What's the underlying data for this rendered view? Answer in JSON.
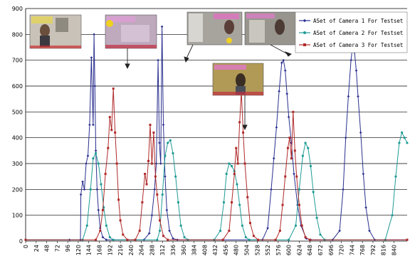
{
  "chart_data": {
    "type": "line",
    "title": "",
    "xlabel": "",
    "ylabel": "",
    "ylim": [
      0,
      900
    ],
    "xlim": [
      0,
      870
    ],
    "grid": true,
    "legend_position": "top-right",
    "yticks": [
      0,
      100,
      200,
      300,
      400,
      500,
      600,
      700,
      800,
      900
    ],
    "xticks": [
      0,
      24,
      48,
      72,
      96,
      120,
      144,
      168,
      192,
      216,
      240,
      264,
      288,
      312,
      336,
      360,
      384,
      408,
      432,
      456,
      480,
      504,
      528,
      552,
      576,
      600,
      624,
      648,
      672,
      696,
      720,
      744,
      768,
      792,
      816,
      840
    ],
    "series": [
      {
        "name": "ASet of Camera 1 For Testset",
        "color": "#2a2f8f",
        "marker": "diamond",
        "points": [
          [
            0,
            5
          ],
          [
            100,
            5
          ],
          [
            125,
            5
          ],
          [
            126,
            180
          ],
          [
            130,
            230
          ],
          [
            134,
            200
          ],
          [
            138,
            300
          ],
          [
            142,
            330
          ],
          [
            146,
            450
          ],
          [
            150,
            710
          ],
          [
            154,
            450
          ],
          [
            156,
            800
          ],
          [
            158,
            600
          ],
          [
            160,
            350
          ],
          [
            163,
            200
          ],
          [
            166,
            120
          ],
          [
            170,
            50
          ],
          [
            176,
            15
          ],
          [
            184,
            5
          ],
          [
            270,
            5
          ],
          [
            282,
            30
          ],
          [
            288,
            100
          ],
          [
            294,
            200
          ],
          [
            298,
            300
          ],
          [
            302,
            700
          ],
          [
            305,
            380
          ],
          [
            308,
            300
          ],
          [
            311,
            830
          ],
          [
            314,
            450
          ],
          [
            318,
            250
          ],
          [
            322,
            120
          ],
          [
            328,
            40
          ],
          [
            336,
            10
          ],
          [
            346,
            5
          ],
          [
            540,
            5
          ],
          [
            552,
            50
          ],
          [
            560,
            200
          ],
          [
            566,
            320
          ],
          [
            572,
            440
          ],
          [
            578,
            580
          ],
          [
            584,
            690
          ],
          [
            588,
            700
          ],
          [
            592,
            660
          ],
          [
            596,
            570
          ],
          [
            600,
            480
          ],
          [
            606,
            380
          ],
          [
            612,
            260
          ],
          [
            620,
            140
          ],
          [
            628,
            60
          ],
          [
            640,
            10
          ],
          [
            650,
            5
          ],
          [
            700,
            5
          ],
          [
            716,
            40
          ],
          [
            724,
            200
          ],
          [
            730,
            400
          ],
          [
            736,
            560
          ],
          [
            742,
            700
          ],
          [
            746,
            760
          ],
          [
            750,
            730
          ],
          [
            754,
            660
          ],
          [
            758,
            560
          ],
          [
            764,
            420
          ],
          [
            770,
            260
          ],
          [
            776,
            130
          ],
          [
            784,
            40
          ],
          [
            796,
            5
          ],
          [
            870,
            5
          ]
        ]
      },
      {
        "name": "ASet of Camera 2 For Testset",
        "color": "#1f9b95",
        "marker": "circle",
        "points": [
          [
            0,
            5
          ],
          [
            130,
            5
          ],
          [
            140,
            60
          ],
          [
            148,
            200
          ],
          [
            154,
            320
          ],
          [
            160,
            340
          ],
          [
            166,
            300
          ],
          [
            172,
            220
          ],
          [
            178,
            130
          ],
          [
            184,
            60
          ],
          [
            192,
            15
          ],
          [
            200,
            5
          ],
          [
            300,
            5
          ],
          [
            306,
            40
          ],
          [
            312,
            180
          ],
          [
            318,
            330
          ],
          [
            324,
            380
          ],
          [
            330,
            390
          ],
          [
            336,
            340
          ],
          [
            342,
            250
          ],
          [
            348,
            150
          ],
          [
            354,
            60
          ],
          [
            362,
            15
          ],
          [
            370,
            5
          ],
          [
            430,
            5
          ],
          [
            444,
            40
          ],
          [
            452,
            150
          ],
          [
            458,
            260
          ],
          [
            464,
            300
          ],
          [
            470,
            290
          ],
          [
            476,
            270
          ],
          [
            482,
            220
          ],
          [
            488,
            140
          ],
          [
            494,
            60
          ],
          [
            502,
            15
          ],
          [
            510,
            5
          ],
          [
            600,
            5
          ],
          [
            616,
            60
          ],
          [
            624,
            200
          ],
          [
            632,
            330
          ],
          [
            638,
            380
          ],
          [
            644,
            360
          ],
          [
            650,
            290
          ],
          [
            656,
            190
          ],
          [
            664,
            90
          ],
          [
            672,
            25
          ],
          [
            682,
            5
          ],
          [
            820,
            5
          ],
          [
            836,
            100
          ],
          [
            844,
            250
          ],
          [
            852,
            380
          ],
          [
            858,
            420
          ],
          [
            864,
            400
          ],
          [
            870,
            380
          ]
        ]
      },
      {
        "name": "ASet of Camera 3 For Testset",
        "color": "#b02a2a",
        "marker": "square",
        "points": [
          [
            0,
            5
          ],
          [
            160,
            5
          ],
          [
            170,
            40
          ],
          [
            176,
            120
          ],
          [
            182,
            260
          ],
          [
            188,
            360
          ],
          [
            192,
            480
          ],
          [
            196,
            430
          ],
          [
            200,
            590
          ],
          [
            204,
            420
          ],
          [
            208,
            300
          ],
          [
            212,
            160
          ],
          [
            216,
            80
          ],
          [
            222,
            25
          ],
          [
            232,
            5
          ],
          [
            250,
            5
          ],
          [
            260,
            40
          ],
          [
            266,
            150
          ],
          [
            272,
            260
          ],
          [
            276,
            220
          ],
          [
            280,
            310
          ],
          [
            284,
            450
          ],
          [
            288,
            300
          ],
          [
            292,
            420
          ],
          [
            296,
            250
          ],
          [
            300,
            180
          ],
          [
            306,
            80
          ],
          [
            314,
            20
          ],
          [
            324,
            5
          ],
          [
            450,
            5
          ],
          [
            464,
            40
          ],
          [
            470,
            150
          ],
          [
            476,
            260
          ],
          [
            480,
            360
          ],
          [
            484,
            300
          ],
          [
            488,
            460
          ],
          [
            492,
            580
          ],
          [
            496,
            420
          ],
          [
            500,
            300
          ],
          [
            506,
            170
          ],
          [
            512,
            70
          ],
          [
            520,
            20
          ],
          [
            530,
            5
          ],
          [
            570,
            5
          ],
          [
            580,
            40
          ],
          [
            586,
            140
          ],
          [
            592,
            250
          ],
          [
            598,
            360
          ],
          [
            602,
            400
          ],
          [
            606,
            320
          ],
          [
            610,
            500
          ],
          [
            614,
            350
          ],
          [
            618,
            250
          ],
          [
            624,
            140
          ],
          [
            630,
            60
          ],
          [
            638,
            15
          ],
          [
            648,
            5
          ],
          [
            870,
            5
          ]
        ]
      }
    ],
    "inset_images": [
      "camera-still-1",
      "camera-still-2",
      "camera-still-3",
      "camera-still-4",
      "camera-still-5"
    ]
  }
}
